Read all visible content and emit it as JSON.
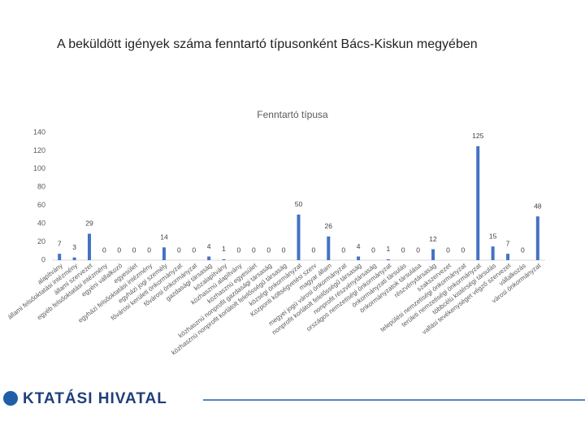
{
  "title": "A beküldött igények száma fenntartó típusonként Bács-Kiskun megyében",
  "footer": "KTATÁSI HIVATAL",
  "chart_data": {
    "type": "bar",
    "title": "Fenntartó típusa",
    "categories": [
      "alapítvány",
      "állami felsőoktatási intézmény",
      "állami szervezet",
      "egyéb felsőoktatási intézmény",
      "egyéni vállalkozó",
      "egyesület",
      "egyházi felsőoktatási intézmény",
      "egyházi jogi személy",
      "fővárosi kerületi önkormányzat",
      "fővárosi önkormányzat",
      "gazdasági társaság",
      "közalapítvány",
      "közhasznú alapítvány",
      "közhasznú egyesület",
      "közhasznú nonprofit gazdasági társaság",
      "közhasznú nonprofit korlátolt felelősségű társaság",
      "községi önkormányzat",
      "Központi költségvetési szerv",
      "magyar állam",
      "megyei jogú városi önkormányzat",
      "nonprofit korlátolt felelősségű társaság",
      "nonprofit részvénytársaság",
      "országos nemzetiségi önkormányzat",
      "önkormányzati társulás",
      "önkormányzatok társulása",
      "részvénytársaság",
      "szakszervezet",
      "települési nemzetiségi önkormányzat",
      "területi nemzetiségi önkormányzat",
      "többcélú kistérségi társulás",
      "vallási tevékenységet végző szervezet",
      "vállalkozás",
      "városi önkormányzat"
    ],
    "values": [
      7,
      3,
      29,
      0,
      0,
      0,
      0,
      14,
      0,
      0,
      4,
      1,
      0,
      0,
      0,
      0,
      50,
      0,
      26,
      0,
      4,
      0,
      1,
      0,
      0,
      12,
      0,
      0,
      125,
      15,
      7,
      0,
      48
    ],
    "color": "#4472c4",
    "ylim": [
      0,
      140
    ],
    "yticks": [
      0,
      20,
      40,
      60,
      80,
      100,
      120,
      140
    ]
  }
}
